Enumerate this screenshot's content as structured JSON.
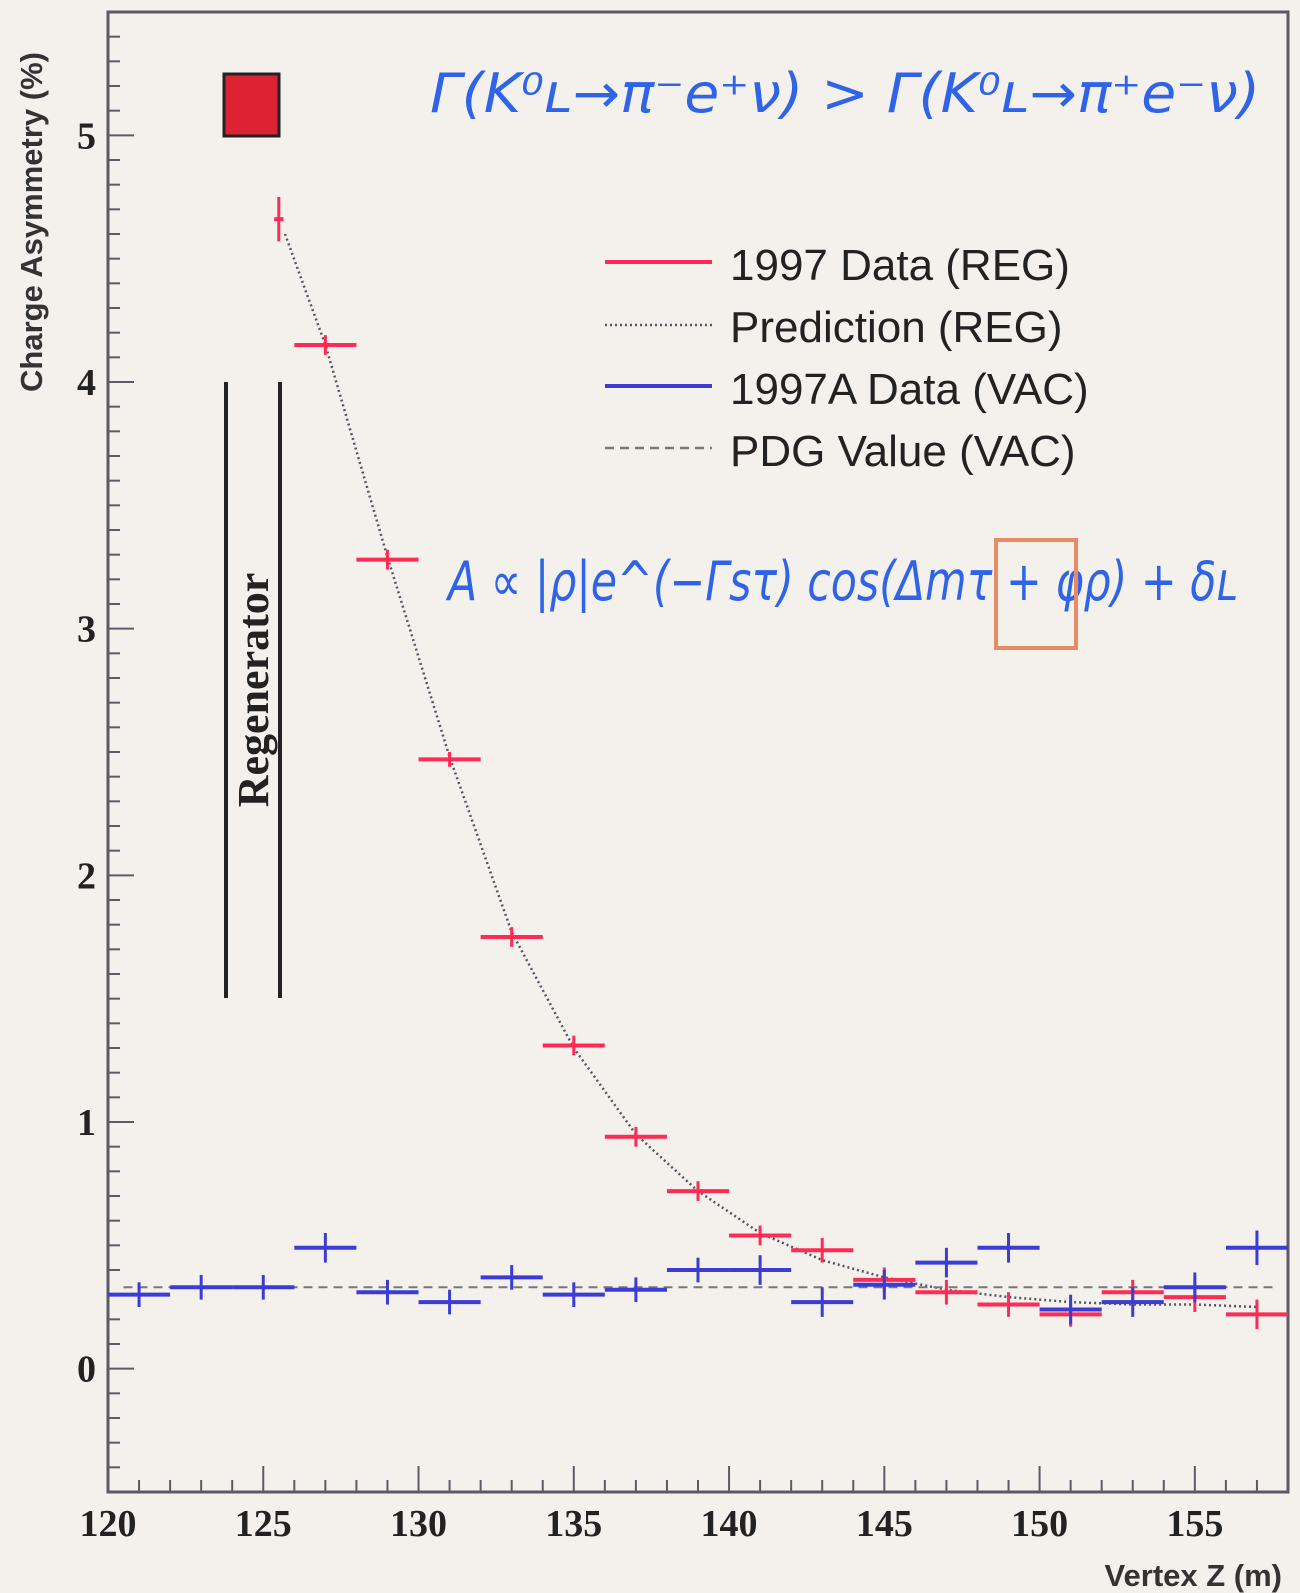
{
  "chart_data": {
    "type": "scatter",
    "title": "",
    "xlabel": "Vertex Z (m)",
    "ylabel": "Charge Asymmetry (%)",
    "xlim": [
      120,
      158
    ],
    "ylim": [
      -0.5,
      5.5
    ],
    "x_ticks": [
      120,
      125,
      130,
      135,
      140,
      145,
      150,
      155
    ],
    "y_ticks": [
      0,
      1,
      2,
      3,
      4,
      5
    ],
    "legend_position": "top-right",
    "series": [
      {
        "name": "1997 Data (REG)",
        "color": "#ff2b55",
        "style": "error-bar",
        "x": [
          125.5,
          127,
          129,
          131,
          133,
          135,
          137,
          139,
          141,
          143,
          145,
          147,
          149,
          151,
          153,
          155,
          157
        ],
        "x_halfwidth": [
          0.15,
          1,
          1,
          1,
          1,
          1,
          1,
          1,
          1,
          1,
          1,
          1,
          1,
          1,
          1,
          1,
          1
        ],
        "y": [
          4.66,
          4.15,
          3.28,
          2.47,
          1.75,
          1.31,
          0.94,
          0.72,
          0.54,
          0.48,
          0.36,
          0.31,
          0.26,
          0.22,
          0.31,
          0.29,
          0.22
        ],
        "y_err": [
          0.09,
          0.04,
          0.04,
          0.03,
          0.04,
          0.04,
          0.04,
          0.04,
          0.04,
          0.05,
          0.05,
          0.05,
          0.05,
          0.05,
          0.05,
          0.06,
          0.06
        ]
      },
      {
        "name": "Prediction (REG)",
        "color": "#555566",
        "style": "dotted",
        "x": [
          125.7,
          127,
          129,
          131,
          133,
          135,
          137,
          139,
          141,
          143,
          145,
          147,
          149,
          151,
          153,
          155,
          157
        ],
        "y": [
          4.6,
          4.15,
          3.29,
          2.48,
          1.77,
          1.3,
          0.95,
          0.72,
          0.55,
          0.44,
          0.37,
          0.32,
          0.29,
          0.27,
          0.26,
          0.26,
          0.25
        ]
      },
      {
        "name": "1997A Data (VAC)",
        "color": "#3b3bd6",
        "style": "error-bar",
        "x": [
          121,
          123,
          125,
          127,
          129,
          131,
          133,
          135,
          137,
          139,
          141,
          143,
          145,
          147,
          149,
          151,
          153,
          155,
          157
        ],
        "x_halfwidth": [
          1,
          1,
          1,
          1,
          1,
          1,
          1,
          1,
          1,
          1,
          1,
          1,
          1,
          1,
          1,
          1,
          1,
          1,
          1
        ],
        "y": [
          0.3,
          0.33,
          0.33,
          0.49,
          0.31,
          0.27,
          0.37,
          0.3,
          0.32,
          0.4,
          0.4,
          0.27,
          0.34,
          0.43,
          0.49,
          0.24,
          0.27,
          0.33,
          0.49
        ],
        "y_err": [
          0.05,
          0.05,
          0.05,
          0.06,
          0.05,
          0.05,
          0.05,
          0.05,
          0.05,
          0.05,
          0.06,
          0.06,
          0.06,
          0.06,
          0.06,
          0.06,
          0.06,
          0.06,
          0.07
        ]
      },
      {
        "name": "PDG Value (VAC)",
        "color": "#777777",
        "style": "dashed",
        "x": [
          120.5,
          157.5
        ],
        "y": [
          0.33,
          0.33
        ]
      }
    ],
    "annotations": [
      {
        "text": "Regenerator",
        "kind": "vertical-label"
      },
      {
        "text": "Γ(K⁰ʟ→π⁻e⁺ν) > Γ(K⁰ʟ→π⁺e⁻ν)",
        "kind": "handwritten"
      },
      {
        "text": "A ∝ |ρ|e^(−Γsτ) cos(Δmτ + φρ) + δʟ",
        "kind": "handwritten"
      }
    ]
  },
  "colors": {
    "background": "#f4f1ec",
    "frame": "#5c5966",
    "reg_data": "#ff2b55",
    "vac_data": "#3b3bd6",
    "handwriting": "#2f63e8",
    "marker_fill": "#dd2233",
    "highlight_box": "#e88a66"
  }
}
